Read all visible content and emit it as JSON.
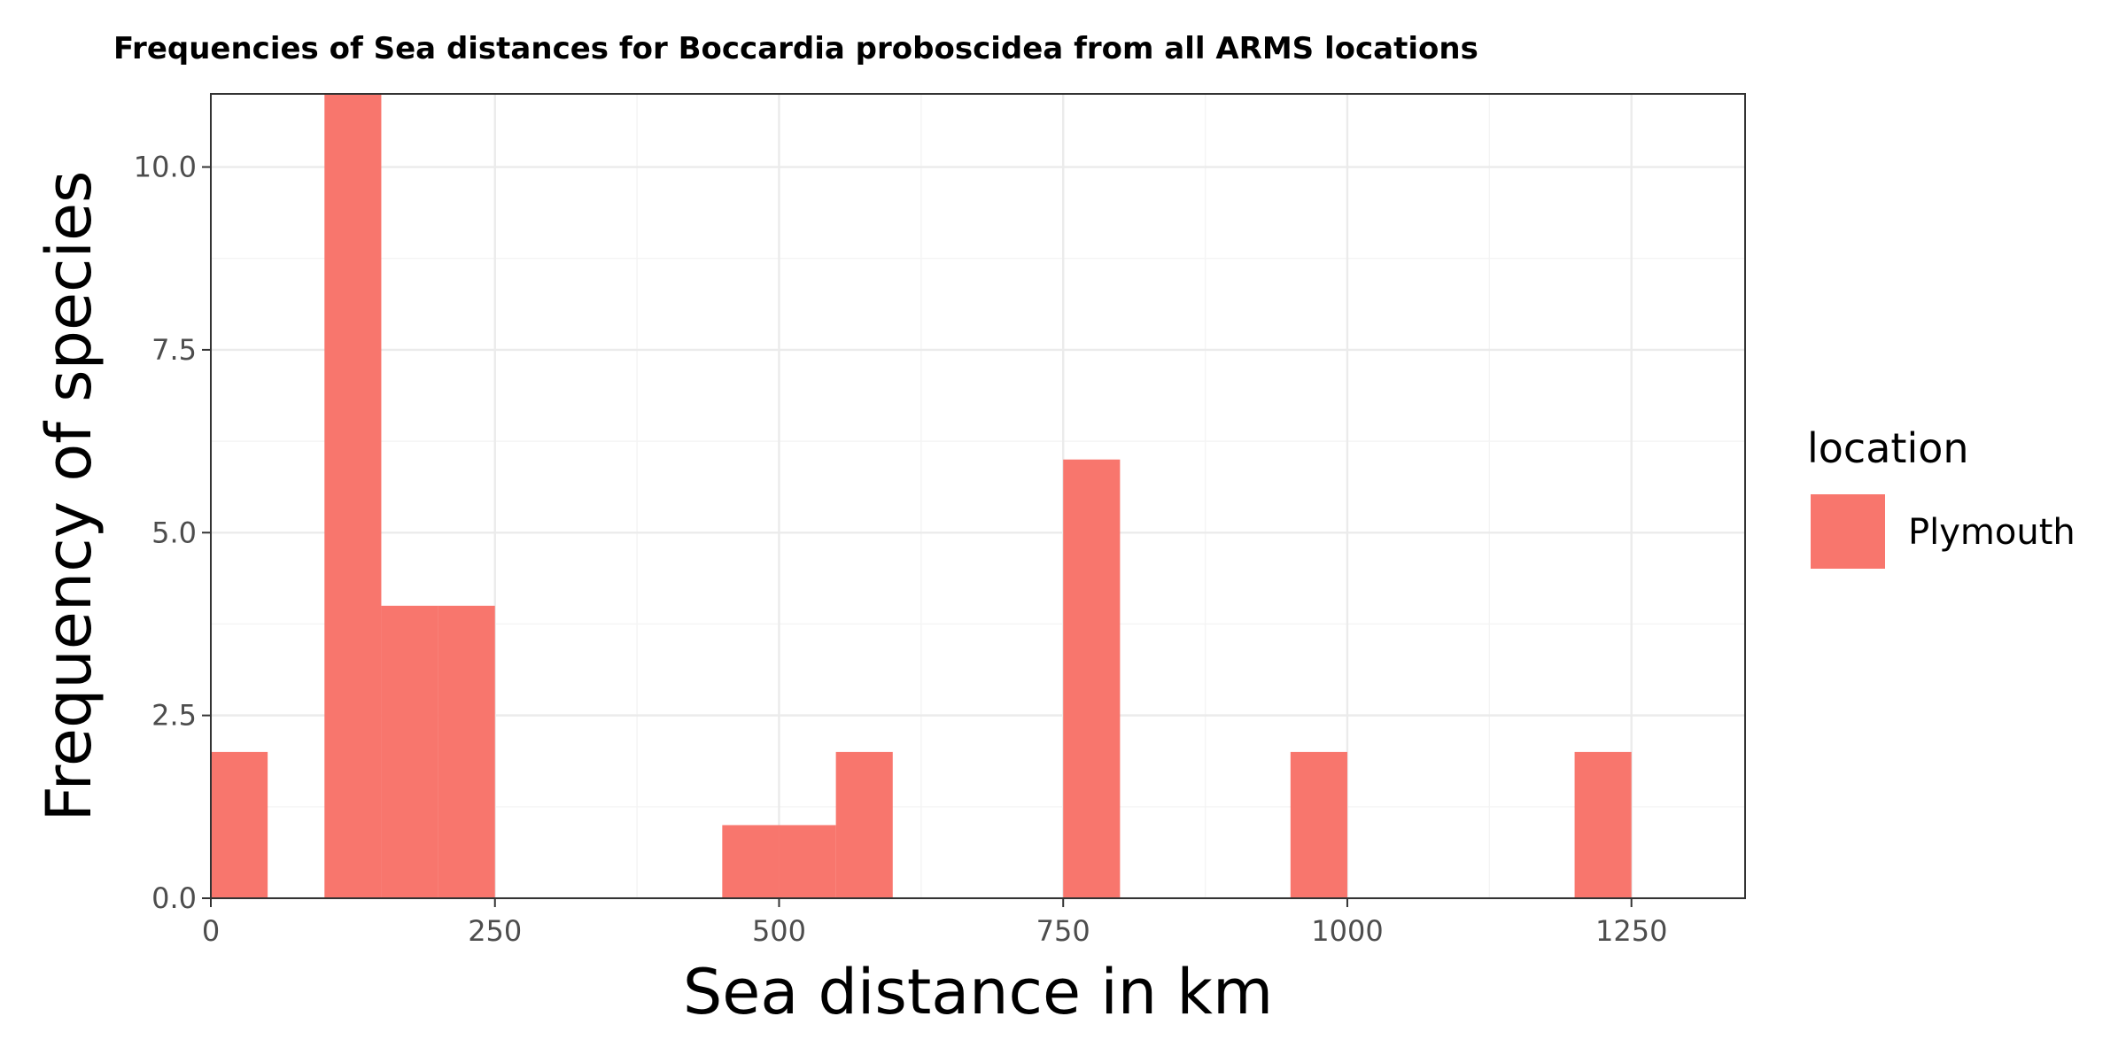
{
  "chart_data": {
    "type": "bar",
    "title": "Frequencies of Sea distances for Boccardia proboscidea from all ARMS locations",
    "xlabel": "Sea distance in km",
    "ylabel": "Frequency of species",
    "xlim": [
      0,
      1350
    ],
    "ylim": [
      0,
      11
    ],
    "x_ticks": [
      0,
      250,
      500,
      750,
      1000,
      1250
    ],
    "x_tick_labels": [
      "0",
      "250",
      "500",
      "750",
      "1000",
      "1250"
    ],
    "y_ticks": [
      0,
      2.5,
      5,
      7.5,
      10
    ],
    "y_tick_labels": [
      "0.0",
      "2.5",
      "5.0",
      "7.5",
      "10.0"
    ],
    "grid": true,
    "bin_width": 50,
    "series": [
      {
        "name": "Plymouth",
        "color": "#f8766d",
        "bins": [
          {
            "x_start": 0,
            "x_end": 50,
            "count": 2
          },
          {
            "x_start": 100,
            "x_end": 150,
            "count": 11
          },
          {
            "x_start": 150,
            "x_end": 200,
            "count": 4
          },
          {
            "x_start": 200,
            "x_end": 250,
            "count": 4
          },
          {
            "x_start": 450,
            "x_end": 500,
            "count": 1
          },
          {
            "x_start": 500,
            "x_end": 550,
            "count": 1
          },
          {
            "x_start": 550,
            "x_end": 600,
            "count": 2
          },
          {
            "x_start": 750,
            "x_end": 800,
            "count": 6
          },
          {
            "x_start": 950,
            "x_end": 1000,
            "count": 2
          },
          {
            "x_start": 1200,
            "x_end": 1250,
            "count": 2
          }
        ]
      }
    ],
    "legend": {
      "title": "location",
      "placement": "right"
    }
  }
}
